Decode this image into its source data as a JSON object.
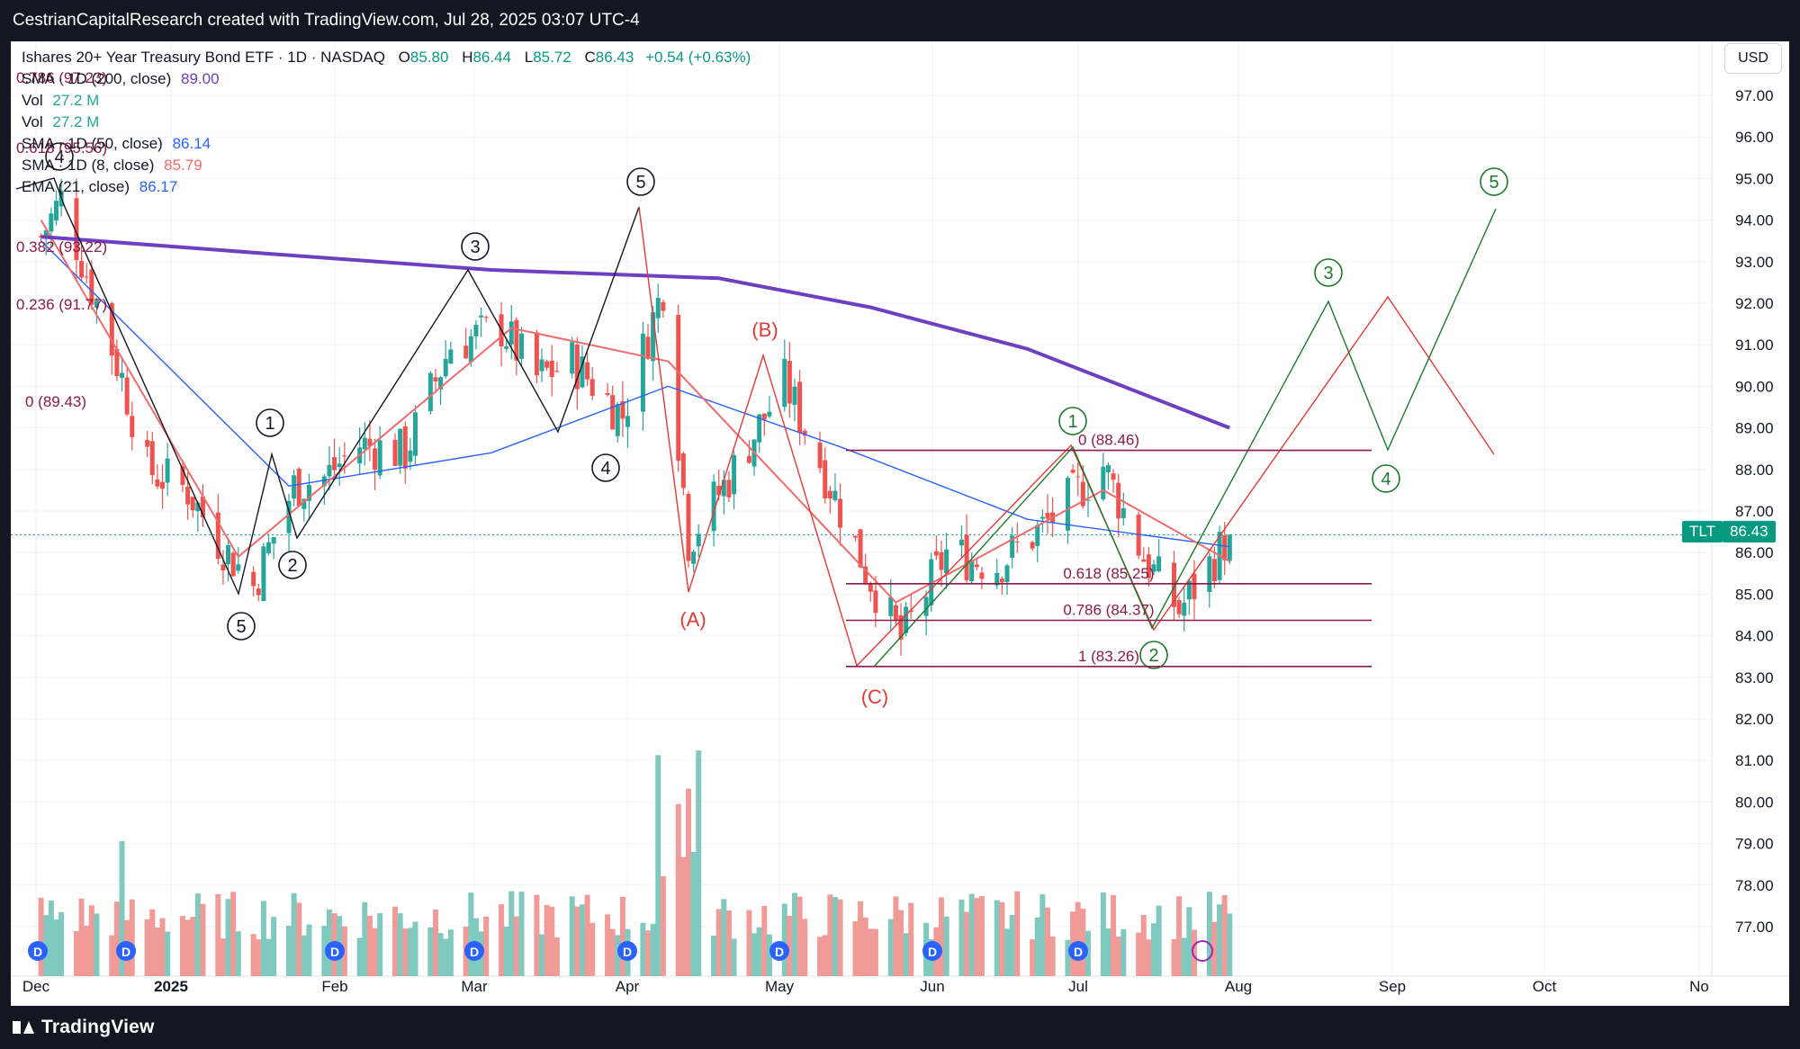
{
  "header": {
    "text": "CestrianCapitalResearch created with TradingView.com, Jul 28, 2025 03:07 UTC-4"
  },
  "footer": {
    "brand": "TradingView"
  },
  "legend": {
    "symbol": "Ishares 20+ Year Treasury Bond ETF · 1D · NASDAQ",
    "open_label": "O",
    "open": "85.80",
    "high_label": "H",
    "high": "86.44",
    "low_label": "L",
    "low": "85.72",
    "close_label": "C",
    "close": "86.43",
    "change": "+0.54 (+0.63%)",
    "indicators": [
      {
        "name": "SMA · 1D (200, close)",
        "value": "89.00",
        "color": "#6e3fc0"
      },
      {
        "name": "Vol",
        "value": "27.2 M",
        "color": "#26a69a"
      },
      {
        "name": "Vol",
        "value": "27.2 M",
        "color": "#26a69a"
      },
      {
        "name": "SMA · 1D (50, close)",
        "value": "86.14",
        "color": "#2962ff"
      },
      {
        "name": "SMA · 1D (8, close)",
        "value": "85.79",
        "color": "#f06b6b"
      },
      {
        "name": "EMA (21, close)",
        "value": "86.17",
        "color": "#2962ff"
      }
    ]
  },
  "currency_button": "USD",
  "ticker_tag": "TLT",
  "last_price_tag": "86.43",
  "colors": {
    "up": "#26a69a",
    "down": "#ef5350",
    "sma200": "#6e3fc0",
    "sma50": "#2962ff",
    "sma8": "#f06b6b",
    "wave_black": "#131722",
    "wave_red": "#e53935",
    "wave_green": "#1b7a2c",
    "fib": "#8b1a4a"
  },
  "chart_data": {
    "type": "candlestick",
    "price_axis": {
      "min": 76.0,
      "max": 97.5,
      "ticks": [
        "97.00",
        "96.00",
        "95.00",
        "94.00",
        "93.00",
        "92.00",
        "91.00",
        "90.00",
        "89.00",
        "88.00",
        "87.00",
        "86.00",
        "85.00",
        "84.00",
        "83.00",
        "82.00",
        "81.00",
        "80.00",
        "79.00",
        "78.00",
        "77.00"
      ]
    },
    "time_axis": [
      "Dec",
      "2025",
      "Feb",
      "Mar",
      "Apr",
      "May",
      "Jun",
      "Jul",
      "Aug",
      "Sep",
      "Oct",
      "No"
    ],
    "last_price": 86.43,
    "ohlc_approx": [
      [
        "2024-12-02",
        93.5,
        94.0,
        93.0,
        93.6
      ],
      [
        "2024-12-06",
        94.3,
        94.9,
        93.6,
        94.5
      ],
      [
        "2024-12-13",
        93.2,
        93.5,
        91.8,
        92.0
      ],
      [
        "2024-12-18",
        90.8,
        91.0,
        89.5,
        90.2
      ],
      [
        "2024-12-23",
        88.4,
        88.8,
        87.6,
        88.0
      ],
      [
        "2024-12-31",
        87.8,
        88.2,
        87.0,
        87.5
      ],
      [
        "2025-01-06",
        87.0,
        87.4,
        86.0,
        86.3
      ],
      [
        "2025-01-13",
        85.6,
        86.0,
        84.9,
        85.2
      ],
      [
        "2025-01-21",
        87.0,
        87.9,
        86.6,
        87.6
      ],
      [
        "2025-01-27",
        87.4,
        88.1,
        86.4,
        87.8
      ],
      [
        "2025-02-03",
        88.2,
        89.2,
        87.9,
        88.6
      ],
      [
        "2025-02-12",
        88.6,
        89.3,
        88.0,
        88.4
      ],
      [
        "2025-02-21",
        90.0,
        91.2,
        89.8,
        91.0
      ],
      [
        "2025-03-03",
        92.2,
        92.7,
        91.0,
        91.4
      ],
      [
        "2025-03-10",
        90.8,
        91.3,
        89.7,
        90.2
      ],
      [
        "2025-03-17",
        90.1,
        91.0,
        89.6,
        90.6
      ],
      [
        "2025-03-27",
        89.2,
        89.6,
        88.6,
        89.3
      ],
      [
        "2025-04-04",
        92.6,
        94.2,
        91.6,
        92.4
      ],
      [
        "2025-04-09",
        88.0,
        88.3,
        85.0,
        86.3
      ],
      [
        "2025-04-17",
        87.4,
        88.2,
        86.6,
        87.8
      ],
      [
        "2025-04-28",
        89.8,
        90.6,
        89.2,
        90.1
      ],
      [
        "2025-05-06",
        88.6,
        88.9,
        87.6,
        87.9
      ],
      [
        "2025-05-14",
        86.6,
        86.9,
        85.3,
        85.6
      ],
      [
        "2025-05-21",
        84.3,
        84.6,
        83.3,
        83.9
      ],
      [
        "2025-05-30",
        85.6,
        86.3,
        85.2,
        86.0
      ],
      [
        "2025-06-09",
        85.4,
        86.0,
        85.0,
        85.7
      ],
      [
        "2025-06-18",
        86.3,
        87.0,
        85.9,
        86.6
      ],
      [
        "2025-06-30",
        87.6,
        88.5,
        87.2,
        88.1
      ],
      [
        "2025-07-08",
        86.3,
        86.6,
        85.6,
        85.9
      ],
      [
        "2025-07-15",
        85.2,
        85.6,
        84.2,
        84.6
      ],
      [
        "2025-07-25",
        85.8,
        86.44,
        85.72,
        86.43
      ]
    ],
    "indicators": {
      "SMA 200": [
        [
          "2024-12-02",
          93.6
        ],
        [
          "2025-01-15",
          93.2
        ],
        [
          "2025-03-01",
          92.8
        ],
        [
          "2025-04-15",
          92.6
        ],
        [
          "2025-05-15",
          91.9
        ],
        [
          "2025-06-15",
          90.9
        ],
        [
          "2025-07-25",
          89.0
        ]
      ],
      "SMA 50": [
        [
          "2024-12-02",
          93.5
        ],
        [
          "2025-01-20",
          87.6
        ],
        [
          "2025-03-01",
          88.4
        ],
        [
          "2025-04-05",
          90.0
        ],
        [
          "2025-05-10",
          88.5
        ],
        [
          "2025-06-15",
          86.8
        ],
        [
          "2025-07-25",
          86.14
        ]
      ],
      "SMA 8": [
        [
          "2024-12-02",
          94.0
        ],
        [
          "2025-01-10",
          85.9
        ],
        [
          "2025-03-05",
          91.4
        ],
        [
          "2025-04-05",
          90.6
        ],
        [
          "2025-05-20",
          84.8
        ],
        [
          "2025-06-30",
          87.5
        ],
        [
          "2025-07-25",
          85.79
        ]
      ]
    },
    "volume_note": "volume bars per session (relative heights)",
    "wave_labels": {
      "black": [
        "4",
        "1",
        "2",
        "3",
        "4",
        "5",
        "5"
      ],
      "red": [
        "(A)",
        "(B)",
        "(C)"
      ],
      "green": [
        "1",
        "2",
        "3",
        "4",
        "5"
      ]
    },
    "fibonacci": {
      "left_levels": [
        "0.786 (97.23)",
        "0.618 (95.56)",
        "0.382 (93.22)",
        "0.236 (91.77)",
        "0 (89.43)"
      ],
      "right_levels": [
        "0 (88.46)",
        "0.618 (85.25)",
        "0.786 (84.37)",
        "1 (83.26)"
      ]
    }
  }
}
